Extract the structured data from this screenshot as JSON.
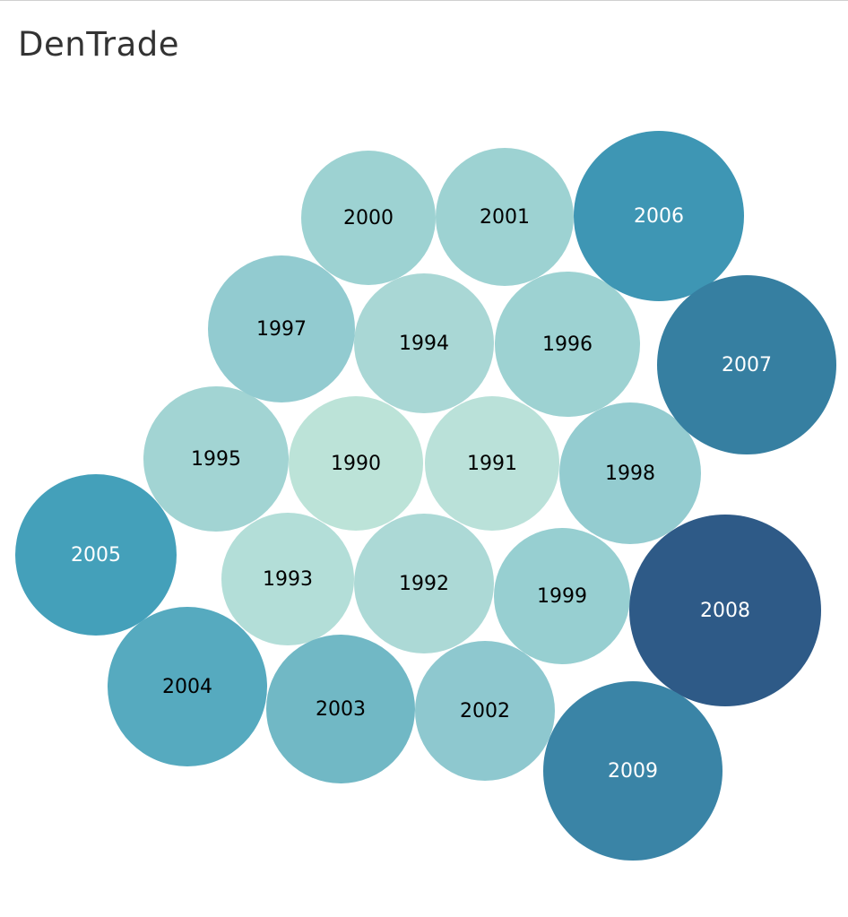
{
  "page": {
    "title": "DenTrade"
  },
  "chart_data": {
    "type": "packed-bubble",
    "title": "DenTrade",
    "bubbles": [
      {
        "label": "1990",
        "color": "#bce3d8",
        "text_color": "#000000"
      },
      {
        "label": "1991",
        "color": "#bae1d9",
        "text_color": "#000000"
      },
      {
        "label": "1992",
        "color": "#acd9d6",
        "text_color": "#000000"
      },
      {
        "label": "1993",
        "color": "#b3ded8",
        "text_color": "#000000"
      },
      {
        "label": "1994",
        "color": "#a9d7d5",
        "text_color": "#000000"
      },
      {
        "label": "1995",
        "color": "#a2d4d3",
        "text_color": "#000000"
      },
      {
        "label": "1996",
        "color": "#9dd2d2",
        "text_color": "#000000"
      },
      {
        "label": "1997",
        "color": "#92cbd0",
        "text_color": "#000000"
      },
      {
        "label": "1998",
        "color": "#94ccd0",
        "text_color": "#000000"
      },
      {
        "label": "1999",
        "color": "#97cfd1",
        "text_color": "#000000"
      },
      {
        "label": "2000",
        "color": "#9dd2d2",
        "text_color": "#000000"
      },
      {
        "label": "2001",
        "color": "#9dd2d2",
        "text_color": "#000000"
      },
      {
        "label": "2002",
        "color": "#8ec8cf",
        "text_color": "#000000"
      },
      {
        "label": "2003",
        "color": "#71b8c5",
        "text_color": "#000000"
      },
      {
        "label": "2004",
        "color": "#56aabf",
        "text_color": "#000000"
      },
      {
        "label": "2005",
        "color": "#44a0ba",
        "text_color": "#ffffff"
      },
      {
        "label": "2006",
        "color": "#3e96b4",
        "text_color": "#ffffff"
      },
      {
        "label": "2007",
        "color": "#367fa1",
        "text_color": "#ffffff"
      },
      {
        "label": "2008",
        "color": "#2e5a87",
        "text_color": "#ffffff"
      },
      {
        "label": "2009",
        "color": "#3a84a6",
        "text_color": "#ffffff"
      }
    ]
  }
}
